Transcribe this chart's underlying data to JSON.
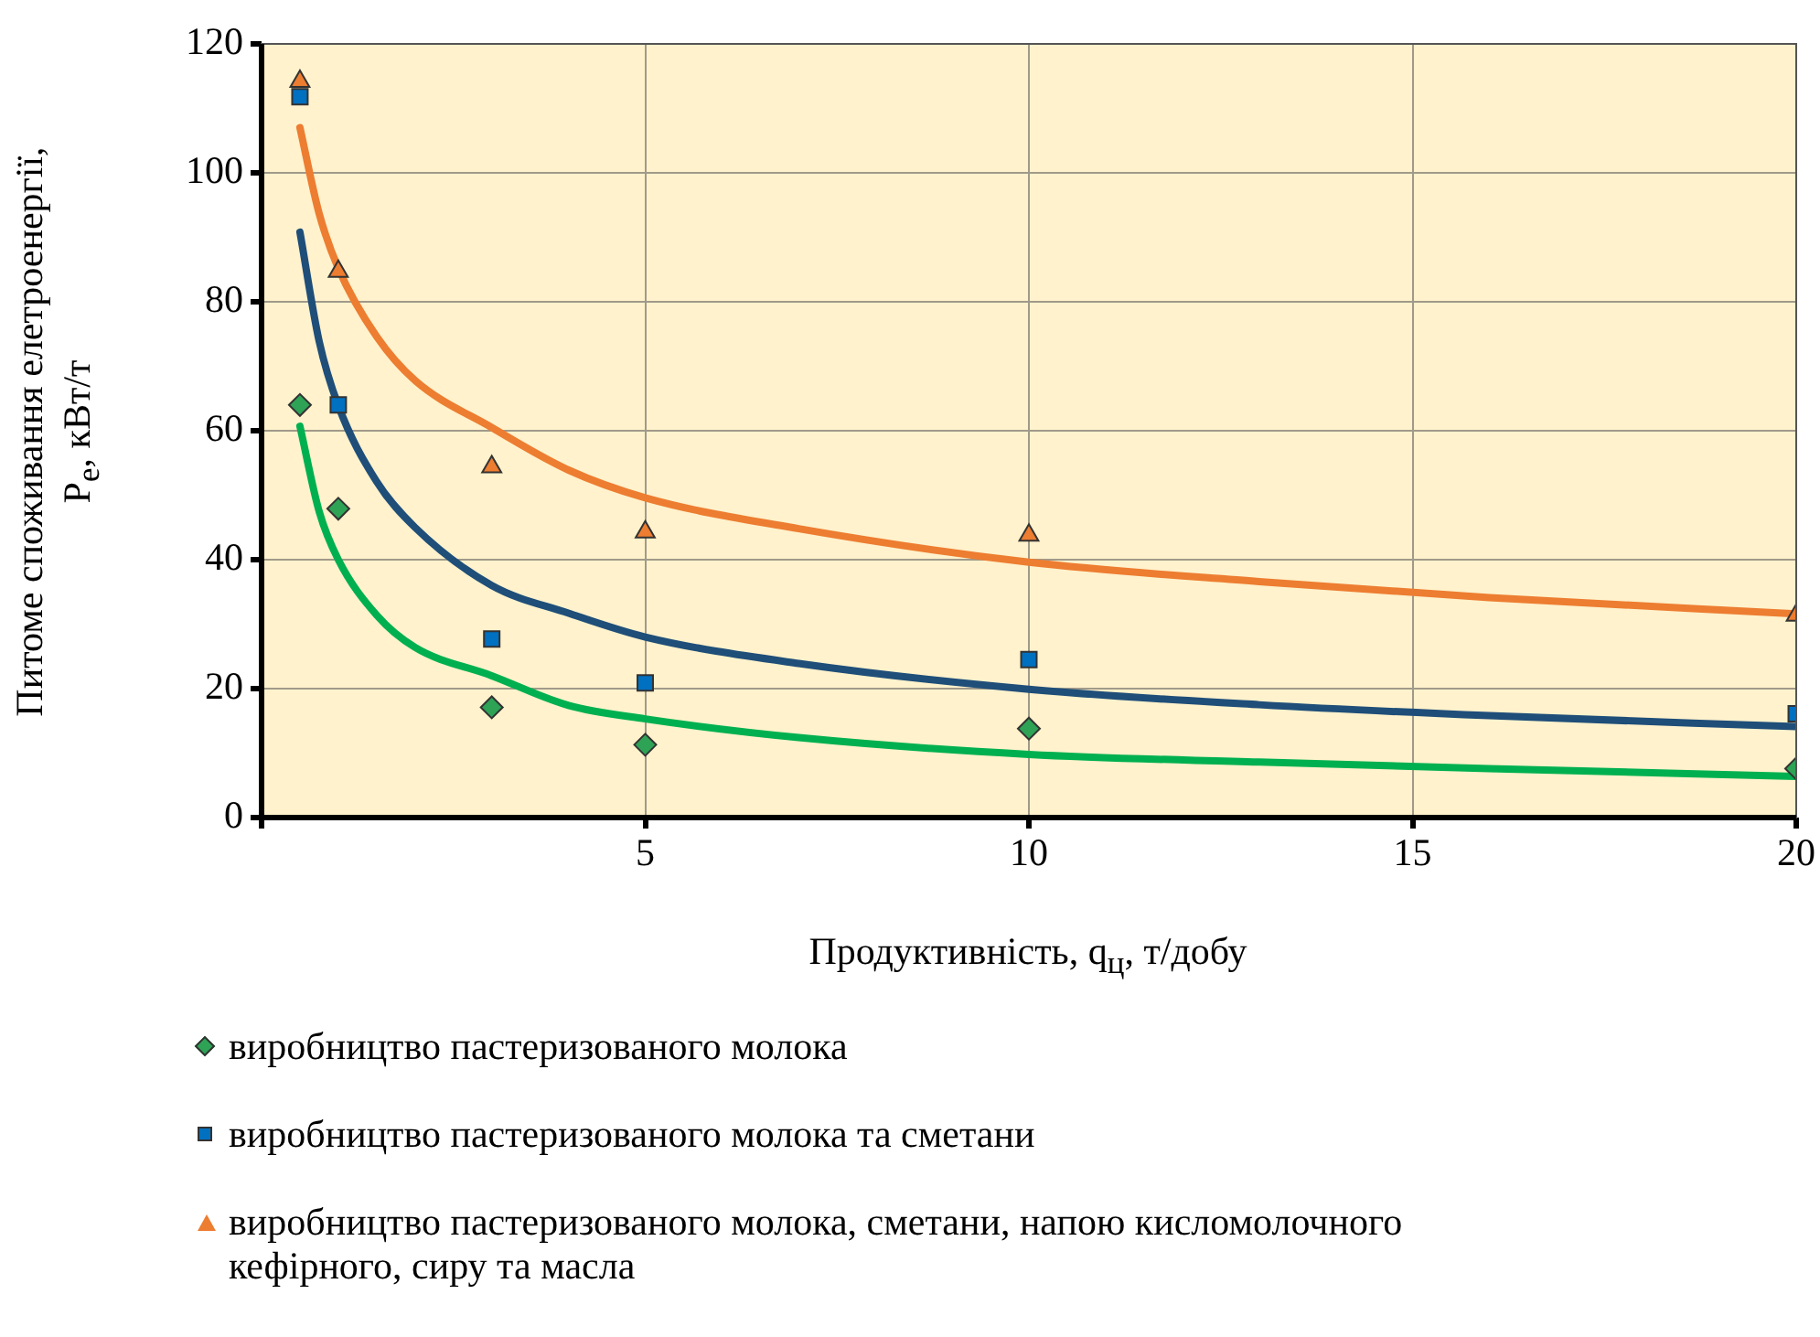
{
  "chart_data": {
    "type": "scatter",
    "xlabel": "Продуктивність, q$_{ц}$, т/добу",
    "ylabel": "Питоме споживання елетроенергії,\nP$_{e}$, кВт/т",
    "xlim": [
      0,
      20
    ],
    "xticks": [
      {
        "value": 0,
        "label": null
      },
      5,
      10,
      15,
      20
    ],
    "ylim": [
      0,
      120
    ],
    "yticks": [
      0,
      20,
      40,
      60,
      80,
      100,
      120
    ],
    "grid": true,
    "legend": "bottom",
    "series": [
      {
        "name": "виробництво пастеризованого молока",
        "type": "scatter",
        "marker": "diamond",
        "color": "#2ea356",
        "x": [
          0.5,
          1,
          3,
          5,
          10,
          20
        ],
        "values": [
          64,
          47.9,
          17.1,
          11.3,
          13.8,
          7.6
        ]
      },
      {
        "name": "виробництво пастеризованого молока та сметани",
        "type": "scatter",
        "marker": "square",
        "color": "#0070c0",
        "x": [
          0.5,
          1,
          3,
          5,
          10,
          20
        ],
        "values": [
          111.8,
          64,
          27.7,
          20.9,
          24.5,
          16.1
        ]
      },
      {
        "name": "виробництво пастеризованого молока, сметани, напою кисломолочного кефірного, сиру та масла",
        "type": "scatter",
        "marker": "triangle",
        "color": "#ed7d31",
        "x": [
          0.5,
          1,
          3,
          5,
          10,
          20
        ],
        "values": [
          114.2,
          84.7,
          54.4,
          44.3,
          43.8,
          31.4
        ]
      },
      {
        "type": "line",
        "marker": "none",
        "color": "#00b050",
        "x": [
          0.5,
          0.75,
          1,
          1.5,
          2,
          3,
          4,
          5,
          7,
          10,
          13,
          16,
          20
        ],
        "values": [
          60.7,
          47.5,
          40,
          31.4,
          26.4,
          22,
          17.4,
          15.3,
          12.4,
          9.8,
          8.6,
          7.6,
          6.4
        ]
      },
      {
        "type": "line",
        "marker": "none",
        "color": "#1f4e79",
        "x": [
          0.5,
          0.75,
          1,
          1.5,
          2,
          3,
          4,
          5,
          7,
          10,
          13,
          16,
          20
        ],
        "values": [
          90.8,
          73.9,
          63.9,
          52.1,
          45,
          36,
          31.7,
          28,
          23.9,
          19.9,
          17.5,
          15.8,
          14.1
        ]
      },
      {
        "type": "line",
        "marker": "none",
        "color": "#ed7d31",
        "x": [
          0.5,
          0.75,
          1,
          1.5,
          2,
          3,
          4,
          5,
          7,
          10,
          13,
          16,
          20
        ],
        "values": [
          107,
          93.7,
          85.2,
          74.6,
          67.8,
          60.5,
          53.9,
          49.6,
          44.8,
          39.6,
          36.6,
          34.1,
          31.6
        ]
      }
    ]
  }
}
